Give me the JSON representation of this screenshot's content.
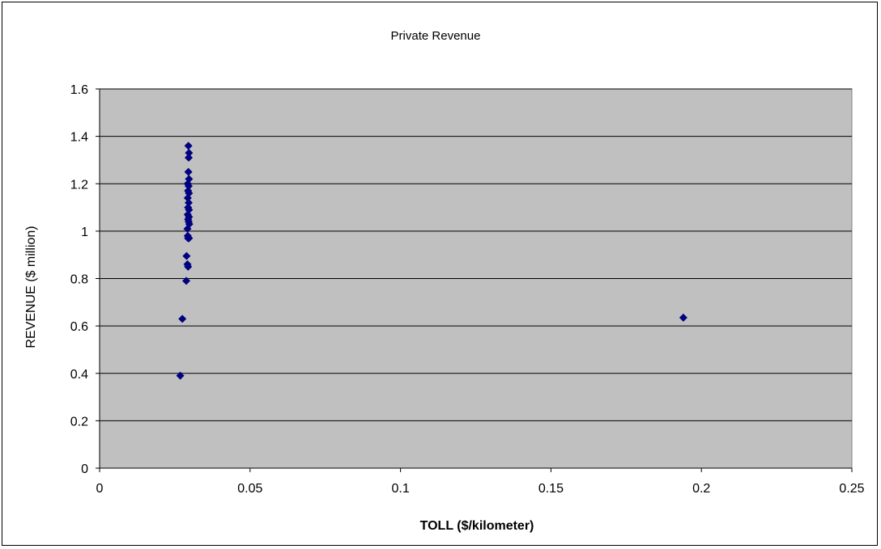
{
  "chart_data": {
    "type": "scatter",
    "title": "Private Revenue",
    "xlabel": "TOLL ($/kilometer)",
    "ylabel": "REVENUE ($ million)",
    "xlim": [
      0,
      0.25
    ],
    "ylim": [
      0,
      1.6
    ],
    "x_ticks": [
      "0",
      "0.05",
      "0.1",
      "0.15",
      "0.2",
      "0.25"
    ],
    "y_ticks": [
      "0",
      "0.2",
      "0.4",
      "0.6",
      "0.8",
      "1",
      "1.2",
      "1.4",
      "1.6"
    ],
    "grid": "horizontal",
    "legend": "none",
    "plot_background": "#c0c0c0",
    "marker_color": "#000080",
    "marker": "diamond",
    "series": [
      {
        "points": [
          {
            "x": 0.0295,
            "y": 1.36
          },
          {
            "x": 0.0297,
            "y": 1.33
          },
          {
            "x": 0.0296,
            "y": 1.31
          },
          {
            "x": 0.0295,
            "y": 1.25
          },
          {
            "x": 0.0297,
            "y": 1.22
          },
          {
            "x": 0.0293,
            "y": 1.2
          },
          {
            "x": 0.0296,
            "y": 1.19
          },
          {
            "x": 0.0294,
            "y": 1.17
          },
          {
            "x": 0.0297,
            "y": 1.16
          },
          {
            "x": 0.0293,
            "y": 1.14
          },
          {
            "x": 0.0296,
            "y": 1.12
          },
          {
            "x": 0.0294,
            "y": 1.1
          },
          {
            "x": 0.0297,
            "y": 1.09
          },
          {
            "x": 0.0293,
            "y": 1.07
          },
          {
            "x": 0.0297,
            "y": 1.06
          },
          {
            "x": 0.0294,
            "y": 1.05
          },
          {
            "x": 0.0296,
            "y": 1.04
          },
          {
            "x": 0.0298,
            "y": 1.03
          },
          {
            "x": 0.0292,
            "y": 1.01
          },
          {
            "x": 0.0293,
            "y": 0.98
          },
          {
            "x": 0.0297,
            "y": 0.97
          },
          {
            "x": 0.0294,
            "y": 0.97
          },
          {
            "x": 0.0289,
            "y": 0.895
          },
          {
            "x": 0.0292,
            "y": 0.86
          },
          {
            "x": 0.0294,
            "y": 0.85
          },
          {
            "x": 0.0288,
            "y": 0.79
          },
          {
            "x": 0.0275,
            "y": 0.63
          },
          {
            "x": 0.0268,
            "y": 0.39
          },
          {
            "x": 0.194,
            "y": 0.635
          }
        ]
      }
    ]
  }
}
